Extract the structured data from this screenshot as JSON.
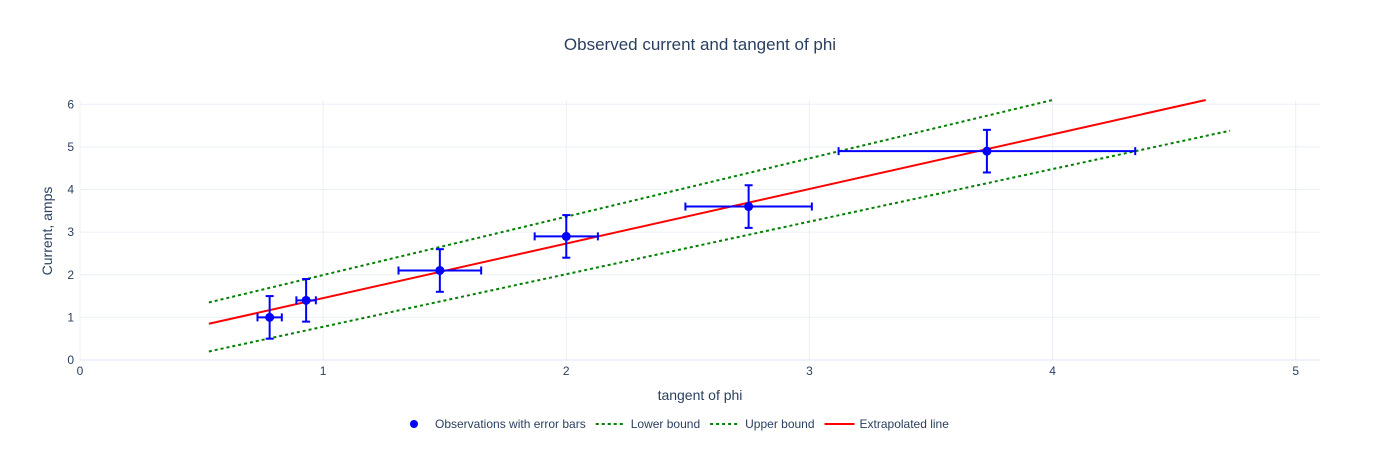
{
  "chart_data": {
    "type": "scatter",
    "title": "Observed current and tangent of phi",
    "xlabel": "tangent of phi",
    "ylabel": "Current, amps",
    "xlim": [
      0,
      5.1
    ],
    "ylim": [
      0,
      6.1
    ],
    "x_ticks": [
      "0",
      "1",
      "2",
      "3",
      "4",
      "5"
    ],
    "y_ticks": [
      "0",
      "1",
      "2",
      "3",
      "4",
      "5",
      "6"
    ],
    "grid": true,
    "legend_position": "bottom",
    "series": [
      {
        "name": "Observations with error bars",
        "kind": "markers",
        "color": "#0000ff",
        "points": [
          {
            "x": 0.78,
            "y": 1.0,
            "x_err": 0.05,
            "y_err": 0.5
          },
          {
            "x": 0.93,
            "y": 1.4,
            "x_err": 0.04,
            "y_err": 0.5
          },
          {
            "x": 1.48,
            "y": 2.1,
            "x_err": 0.17,
            "y_err": 0.5
          },
          {
            "x": 2.0,
            "y": 2.9,
            "x_err": 0.13,
            "y_err": 0.5
          },
          {
            "x": 2.75,
            "y": 3.6,
            "x_err": 0.26,
            "y_err": 0.5
          },
          {
            "x": 3.73,
            "y": 4.9,
            "x_err": 0.61,
            "y_err": 0.5
          }
        ]
      },
      {
        "name": "Lower bound",
        "kind": "dotted-line",
        "color": "#008000",
        "x": [
          0.53,
          4.73
        ],
        "y": [
          0.2,
          5.38
        ]
      },
      {
        "name": "Upper bound",
        "kind": "dotted-line",
        "color": "#008000",
        "x": [
          0.53,
          4.0
        ],
        "y": [
          1.35,
          6.1
        ]
      },
      {
        "name": "Extrapolated line",
        "kind": "line",
        "color": "#ff0000",
        "x": [
          0.53,
          4.63
        ],
        "y": [
          0.85,
          6.1
        ]
      }
    ]
  }
}
